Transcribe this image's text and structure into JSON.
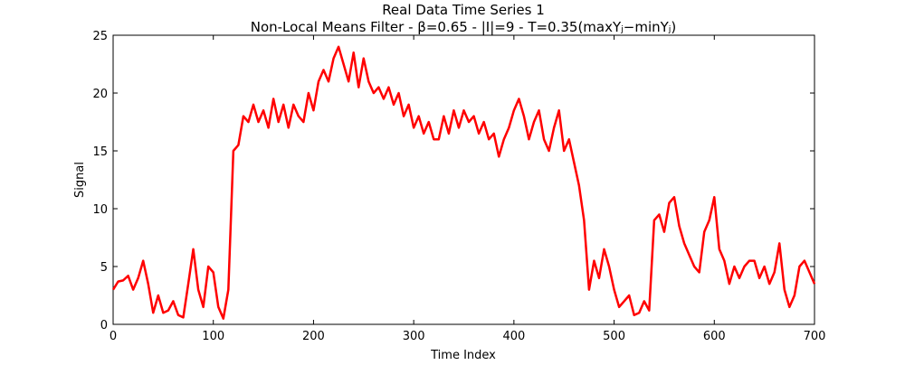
{
  "chart_data": {
    "type": "line",
    "title": "Real Data Time Series 1",
    "subtitle": "Non-Local Means Filter - β=0.65 - |I|=9 - T=0.35(maxYⱼ−minYⱼ)",
    "x_label": "Time Index",
    "y_label": "Signal",
    "color": "#ff0000",
    "x": [
      0,
      5,
      10,
      15,
      20,
      25,
      30,
      35,
      40,
      45,
      50,
      55,
      60,
      65,
      70,
      75,
      80,
      85,
      90,
      95,
      100,
      105,
      110,
      115,
      120,
      125,
      130,
      135,
      140,
      145,
      150,
      155,
      160,
      165,
      170,
      175,
      180,
      185,
      190,
      195,
      200,
      205,
      210,
      215,
      220,
      225,
      230,
      235,
      240,
      245,
      250,
      255,
      260,
      265,
      270,
      275,
      280,
      285,
      290,
      295,
      300,
      305,
      310,
      315,
      320,
      325,
      330,
      335,
      340,
      345,
      350,
      355,
      360,
      365,
      370,
      375,
      380,
      385,
      390,
      395,
      400,
      405,
      410,
      415,
      420,
      425,
      430,
      435,
      440,
      445,
      450,
      455,
      460,
      465,
      470,
      475,
      480,
      485,
      490,
      495,
      500,
      505,
      510,
      515,
      520,
      525,
      530,
      535,
      540,
      545,
      550,
      555,
      560,
      565,
      570,
      575,
      580,
      585,
      590,
      595,
      600,
      605,
      610,
      615,
      620,
      625,
      630,
      635,
      640,
      645,
      650,
      655,
      660,
      665,
      670,
      675,
      680,
      685,
      690,
      695,
      700
    ],
    "values": [
      3.0,
      3.7,
      3.8,
      4.2,
      3.0,
      4.0,
      5.5,
      3.5,
      1.0,
      2.5,
      1.0,
      1.2,
      2.0,
      0.8,
      0.6,
      3.5,
      6.5,
      3.0,
      1.5,
      5.0,
      4.5,
      1.5,
      0.5,
      3.0,
      15.0,
      15.5,
      18.0,
      17.5,
      19.0,
      17.5,
      18.5,
      17.0,
      19.5,
      17.5,
      19.0,
      17.0,
      19.0,
      18.0,
      17.5,
      20.0,
      18.5,
      21.0,
      22.0,
      21.0,
      23.0,
      24.0,
      22.5,
      21.0,
      23.5,
      20.5,
      23.0,
      21.0,
      20.0,
      20.5,
      19.5,
      20.5,
      19.0,
      20.0,
      18.0,
      19.0,
      17.0,
      18.0,
      16.5,
      17.5,
      16.0,
      16.0,
      18.0,
      16.5,
      18.5,
      17.0,
      18.5,
      17.5,
      18.0,
      16.5,
      17.5,
      16.0,
      16.5,
      14.5,
      16.0,
      17.0,
      18.5,
      19.5,
      18.0,
      16.0,
      17.5,
      18.5,
      16.0,
      15.0,
      17.0,
      18.5,
      15.0,
      16.0,
      14.0,
      12.0,
      9.0,
      3.0,
      5.5,
      4.0,
      6.5,
      5.0,
      3.0,
      1.5,
      2.0,
      2.5,
      0.8,
      1.0,
      2.0,
      1.2,
      9.0,
      9.5,
      8.0,
      10.5,
      11.0,
      8.5,
      7.0,
      6.0,
      5.0,
      4.5,
      8.0,
      9.0,
      11.0,
      6.5,
      5.5,
      3.5,
      5.0,
      4.0,
      5.0,
      5.5,
      5.5,
      4.0,
      5.0,
      3.5,
      4.5,
      7.0,
      3.0,
      1.5,
      2.5,
      5.0,
      5.5,
      4.5,
      3.5
    ],
    "xlim": [
      0,
      700
    ],
    "ylim": [
      0,
      25
    ],
    "xticks": [
      0,
      100,
      200,
      300,
      400,
      500,
      600,
      700
    ],
    "yticks": [
      0,
      5,
      10,
      15,
      20,
      25
    ],
    "grid": false
  }
}
